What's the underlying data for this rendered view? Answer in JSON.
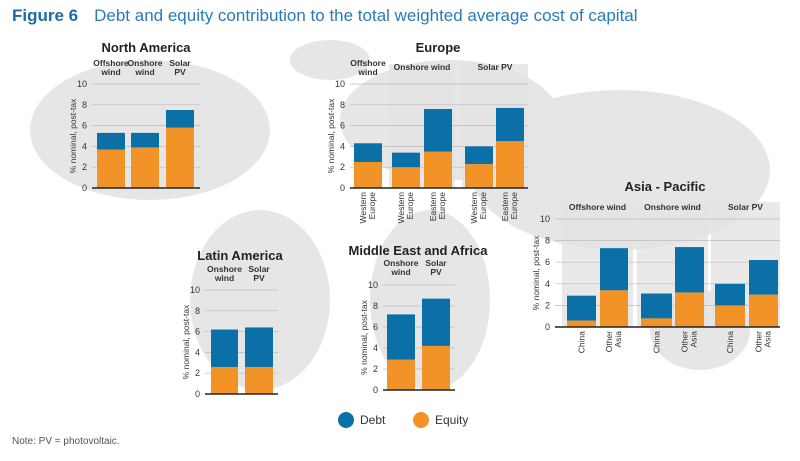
{
  "figure_label": "Figure 6",
  "title": "Debt and equity contribution to the total weighted average cost of capital",
  "note": "Note: PV = photovoltaic.",
  "colors": {
    "debt": "#0b70a8",
    "equity": "#f29327",
    "group_shade": "#e4e4e4",
    "map": "#e6e6e6"
  },
  "chart_data": {
    "type": "bar",
    "stacked": true,
    "ylabel": "% nominal, post-tax",
    "ylim": [
      0,
      10
    ],
    "yticks": [
      0,
      2,
      4,
      6,
      8,
      10
    ],
    "grid": true,
    "legend": {
      "placement": "bottom-center",
      "entries": [
        "Debt",
        "Equity"
      ]
    },
    "panels": [
      {
        "title": "North America",
        "groups": [
          {
            "label": "Offshore wind",
            "categories": [
              {
                "label": "",
                "debt": 1.6,
                "equity": 3.7
              }
            ]
          },
          {
            "label": "Onshore wind",
            "categories": [
              {
                "label": "",
                "debt": 1.4,
                "equity": 3.9
              }
            ]
          },
          {
            "label": "Solar PV",
            "categories": [
              {
                "label": "",
                "debt": 1.7,
                "equity": 5.8
              }
            ]
          }
        ]
      },
      {
        "title": "Europe",
        "groups": [
          {
            "label": "Offshore wind",
            "categories": [
              {
                "label": "Western Europe",
                "debt": 1.8,
                "equity": 2.5
              }
            ]
          },
          {
            "label": "Onshore wind",
            "categories": [
              {
                "label": "Western Europe",
                "debt": 1.4,
                "equity": 2.0
              },
              {
                "label": "Eastern Europe",
                "debt": 4.1,
                "equity": 3.5
              }
            ]
          },
          {
            "label": "Solar PV",
            "categories": [
              {
                "label": "Western Europe",
                "debt": 1.7,
                "equity": 2.3
              },
              {
                "label": "Eastern Europe",
                "debt": 3.2,
                "equity": 4.5
              }
            ]
          }
        ]
      },
      {
        "title": "Asia - Pacific",
        "groups": [
          {
            "label": "Offshore wind",
            "categories": [
              {
                "label": "China",
                "debt": 2.3,
                "equity": 0.6
              },
              {
                "label": "Other Asia",
                "debt": 3.9,
                "equity": 3.4
              }
            ]
          },
          {
            "label": "Onshore wind",
            "categories": [
              {
                "label": "China",
                "debt": 2.3,
                "equity": 0.8
              },
              {
                "label": "Other Asia",
                "debt": 4.2,
                "equity": 3.2
              }
            ]
          },
          {
            "label": "Solar PV",
            "categories": [
              {
                "label": "China",
                "debt": 2.0,
                "equity": 2.0
              },
              {
                "label": "Other Asia",
                "debt": 3.2,
                "equity": 3.0
              }
            ]
          }
        ]
      },
      {
        "title": "Latin America",
        "groups": [
          {
            "label": "Onshore wind",
            "categories": [
              {
                "label": "",
                "debt": 3.6,
                "equity": 2.6
              }
            ]
          },
          {
            "label": "Solar PV",
            "categories": [
              {
                "label": "",
                "debt": 3.8,
                "equity": 2.6
              }
            ]
          }
        ]
      },
      {
        "title": "Middle East and Africa",
        "groups": [
          {
            "label": "Onshore wind",
            "categories": [
              {
                "label": "",
                "debt": 4.3,
                "equity": 2.9
              }
            ]
          },
          {
            "label": "Solar PV",
            "categories": [
              {
                "label": "",
                "debt": 4.5,
                "equity": 4.2
              }
            ]
          }
        ]
      }
    ]
  }
}
